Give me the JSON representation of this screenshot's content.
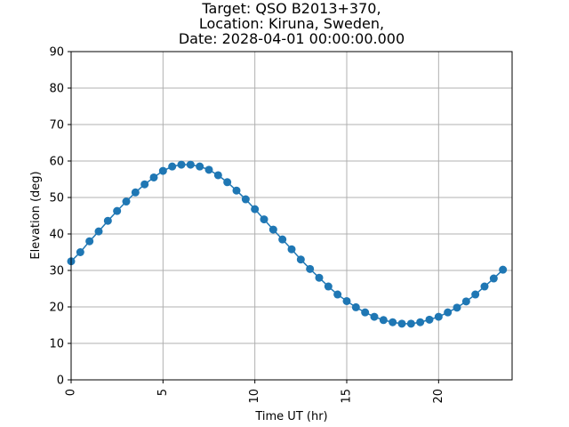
{
  "chart_data": {
    "type": "line",
    "title_lines": [
      "Target: QSO B2013+370,",
      "Location: Kiruna, Sweden,",
      "Date: 2028-04-01 00:00:00.000"
    ],
    "xlabel": "Time UT (hr)",
    "ylabel": "Elevation (deg)",
    "xlim": [
      0,
      24
    ],
    "ylim": [
      0,
      90
    ],
    "xticks": [
      0,
      5,
      10,
      15,
      20
    ],
    "yticks": [
      0,
      10,
      20,
      30,
      40,
      50,
      60,
      70,
      80,
      90
    ],
    "grid": true,
    "marker": "circle",
    "line_color": "#1f77b4",
    "series": [
      {
        "x": [
          0,
          0.5,
          1,
          1.5,
          2,
          2.5,
          3,
          3.5,
          4,
          4.5,
          5,
          5.5,
          6,
          6.5,
          7,
          7.5,
          8,
          8.5,
          9,
          9.5,
          10,
          10.5,
          11,
          11.5,
          12,
          12.5,
          13,
          13.5,
          14,
          14.5,
          15,
          15.5,
          16,
          16.5,
          17,
          17.5,
          18,
          18.5,
          19,
          19.5,
          20,
          20.5,
          21,
          21.5,
          22,
          22.5,
          23,
          23.5
        ],
        "values": [
          32.5,
          35.0,
          38.0,
          40.7,
          43.6,
          46.3,
          48.9,
          51.4,
          53.6,
          55.5,
          57.3,
          58.5,
          59.0,
          59.0,
          58.5,
          57.6,
          56.1,
          54.2,
          51.9,
          49.5,
          46.8,
          44.0,
          41.2,
          38.5,
          35.8,
          33.0,
          30.4,
          28.0,
          25.6,
          23.4,
          21.6,
          19.9,
          18.5,
          17.3,
          16.4,
          15.8,
          15.4,
          15.4,
          15.8,
          16.5,
          17.3,
          18.5,
          19.8,
          21.5,
          23.4,
          25.6,
          27.8,
          30.2
        ]
      }
    ]
  }
}
